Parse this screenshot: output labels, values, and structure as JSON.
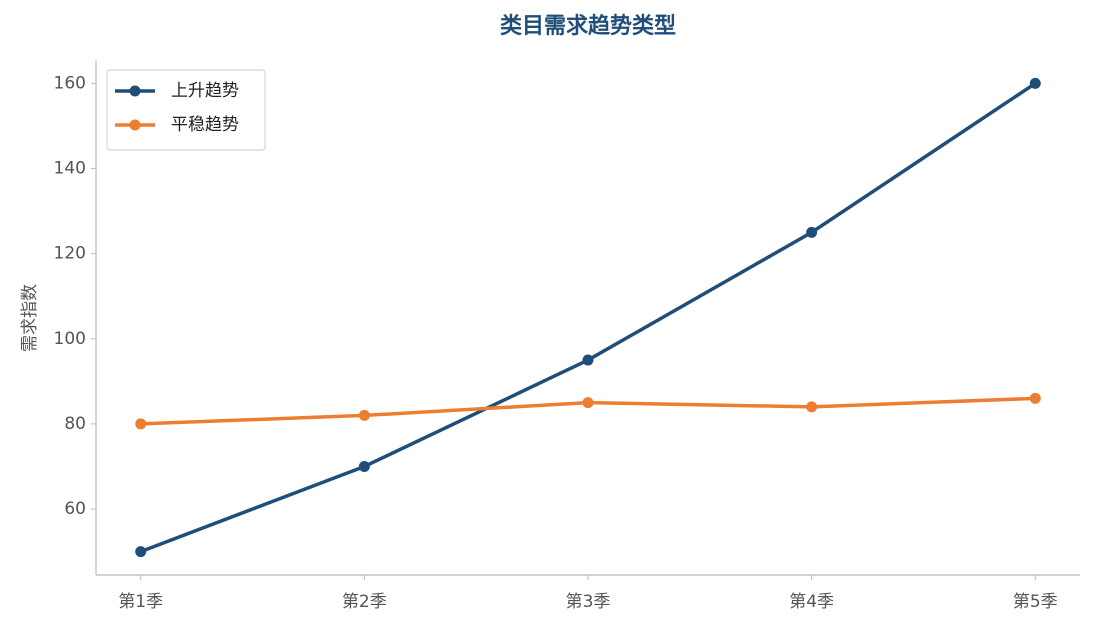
{
  "chart_data": {
    "type": "line",
    "title": "类目需求趋势类型",
    "ylabel": "需求指数",
    "categories": [
      "第1季",
      "第2季",
      "第3季",
      "第4季",
      "第5季"
    ],
    "series": [
      {
        "name": "上升趋势",
        "color": "#1f4e79",
        "values": [
          50,
          70,
          95,
          125,
          160
        ]
      },
      {
        "name": "平稳趋势",
        "color": "#ed7d31",
        "values": [
          80,
          82,
          85,
          84,
          86
        ]
      }
    ],
    "ylim": [
      44.5,
      165.5
    ],
    "yticks": [
      60,
      80,
      100,
      120,
      140,
      160
    ],
    "grid": false,
    "legend": "upper left"
  }
}
